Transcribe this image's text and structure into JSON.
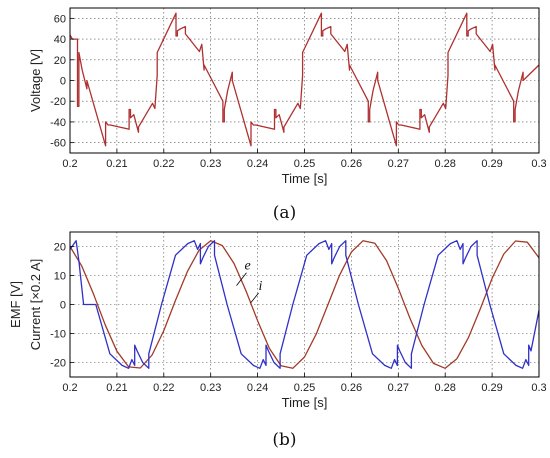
{
  "chart_data": [
    {
      "type": "line",
      "panel_label": "(a)",
      "xlabel": "Time [s]",
      "ylabel": "Voltage [V]",
      "xlim": [
        0.2,
        0.3
      ],
      "ylim": [
        -70,
        70
      ],
      "xticks": [
        0.2,
        0.21,
        0.22,
        0.23,
        0.24,
        0.25,
        0.26,
        0.27,
        0.28,
        0.29,
        0.3
      ],
      "xtick_labels": [
        "0.2",
        "0.21",
        "0.22",
        "0.23",
        "0.24",
        "0.25",
        "0.26",
        "0.27",
        "0.28",
        "0.29",
        "0.3"
      ],
      "yticks": [
        -60,
        -40,
        -20,
        0,
        20,
        40,
        60
      ],
      "ytick_labels": [
        "-60",
        "-40",
        "-20",
        "0",
        "20",
        "40",
        "60"
      ],
      "grid": true,
      "series": [
        {
          "color": "#b03030",
          "x": [
            0.2,
            0.2005,
            0.2016,
            0.2016,
            0.2019,
            0.2019,
            0.2026,
            0.2036,
            0.2036,
            0.2076,
            0.2076,
            0.2081,
            0.2081,
            0.2086,
            0.2086,
            0.2126,
            0.2126,
            0.2129,
            0.2129,
            0.2136,
            0.2146,
            0.2146,
            0.2176,
            0.2176,
            0.2181,
            0.2181,
            0.2186,
            0.2186,
            0.2226,
            0.2226,
            0.2229,
            0.2229,
            0.2236,
            0.2246,
            0.2246,
            0.2276,
            0.2276,
            0.2281,
            0.2281,
            0.2286,
            0.2286,
            0.2326,
            0.2326,
            0.2329,
            0.2329,
            0.2336,
            0.2346,
            0.2346,
            0.2386,
            0.2386,
            0.2391,
            0.2391,
            0.2396,
            0.2396,
            0.2436,
            0.2436,
            0.2439,
            0.2439,
            0.2446,
            0.2456,
            0.2456,
            0.2486,
            0.2486,
            0.2491,
            0.2491,
            0.2496,
            0.2496,
            0.2536,
            0.2536,
            0.2539,
            0.2539,
            0.2546,
            0.2556,
            0.2556,
            0.2586,
            0.2586,
            0.2591,
            0.2591,
            0.2596,
            0.2596,
            0.2636,
            0.2636,
            0.2639,
            0.2639,
            0.2646,
            0.2656,
            0.2656,
            0.2696,
            0.2696,
            0.2701,
            0.2701,
            0.2706,
            0.2706,
            0.2746,
            0.2746,
            0.2749,
            0.2749,
            0.2756,
            0.2766,
            0.2766,
            0.2796,
            0.2796,
            0.2801,
            0.2801,
            0.2806,
            0.2806,
            0.2846,
            0.2846,
            0.2849,
            0.2849,
            0.2856,
            0.2866,
            0.2866,
            0.2896,
            0.2896,
            0.2901,
            0.2901,
            0.2906,
            0.2906,
            0.2946,
            0.2946,
            0.2949,
            0.2949,
            0.2956,
            0.2966,
            0.2966,
            0.3
          ],
          "y": [
            44,
            40,
            40,
            -25,
            -25,
            27,
            10,
            -8,
            0,
            -63,
            -40,
            -43,
            -43,
            -43,
            -43,
            -47,
            -28,
            -28,
            -36,
            -33,
            -50,
            -45,
            -22,
            -22,
            -27,
            -27,
            5,
            27,
            65,
            43,
            43,
            48,
            50,
            52,
            45,
            28,
            28,
            35,
            35,
            10,
            15,
            -20,
            -40,
            -40,
            -28,
            -10,
            8,
            0,
            -63,
            -40,
            -43,
            -43,
            -43,
            -43,
            -47,
            -28,
            -28,
            -36,
            -33,
            -50,
            -45,
            -22,
            -22,
            -27,
            -27,
            5,
            27,
            65,
            43,
            43,
            48,
            50,
            52,
            45,
            28,
            28,
            35,
            35,
            10,
            15,
            -20,
            -40,
            -40,
            -28,
            -10,
            8,
            0,
            -63,
            -40,
            -43,
            -43,
            -43,
            -43,
            -47,
            -28,
            -28,
            -36,
            -33,
            -50,
            -45,
            -22,
            -22,
            -27,
            -27,
            5,
            27,
            65,
            43,
            43,
            48,
            50,
            52,
            45,
            28,
            28,
            35,
            35,
            10,
            15,
            -20,
            -40,
            -40,
            -28,
            -10,
            8,
            0,
            15
          ]
        }
      ]
    },
    {
      "type": "line",
      "panel_label": "(b)",
      "xlabel": "Time [s]",
      "ylabel_lines": [
        "EMF [V]",
        "Current [×0.2 A]"
      ],
      "xlim": [
        0.2,
        0.3
      ],
      "ylim": [
        -25,
        25
      ],
      "xticks": [
        0.2,
        0.21,
        0.22,
        0.23,
        0.24,
        0.25,
        0.26,
        0.27,
        0.28,
        0.29,
        0.3
      ],
      "xtick_labels": [
        "0.2",
        "0.21",
        "0.22",
        "0.23",
        "0.24",
        "0.25",
        "0.26",
        "0.27",
        "0.28",
        "0.29",
        "0.3"
      ],
      "yticks": [
        -20,
        -10,
        0,
        10,
        20
      ],
      "ytick_labels": [
        "-20",
        "-10",
        "0",
        "10",
        "20"
      ],
      "grid": true,
      "annotations": [
        {
          "text": "e",
          "x": 0.2372,
          "y": 12
        },
        {
          "text": "i",
          "x": 0.2402,
          "y": 5
        }
      ],
      "series": [
        {
          "color": "#a03c28",
          "label": "e",
          "x": [
            0.2,
            0.2025,
            0.205,
            0.2075,
            0.21,
            0.2125,
            0.215,
            0.2175,
            0.22,
            0.2225,
            0.225,
            0.2275,
            0.23,
            0.2325,
            0.235,
            0.2375,
            0.24,
            0.2425,
            0.245,
            0.2475,
            0.25,
            0.2525,
            0.255,
            0.2575,
            0.26,
            0.2625,
            0.265,
            0.2675,
            0.27,
            0.2725,
            0.275,
            0.2775,
            0.28,
            0.2825,
            0.285,
            0.2875,
            0.29,
            0.2925,
            0.295,
            0.2975,
            0.3
          ],
          "y": [
            20,
            13.3,
            3.7,
            -7,
            -16.1,
            -21.5,
            -21.9,
            -17.4,
            -9,
            1.4,
            11.3,
            18.7,
            22,
            20.3,
            14.1,
            4.8,
            -5.6,
            -15.1,
            -21.1,
            -22,
            -18.1,
            -10.2,
            0,
            10.2,
            18.1,
            22,
            21.1,
            15.1,
            5.6,
            -4.8,
            -14.1,
            -20.3,
            -22,
            -18.7,
            -11.3,
            -1.4,
            9,
            17.4,
            21.9,
            21.5,
            16.1
          ]
        },
        {
          "color": "#3030c8",
          "label": "i",
          "x": [
            0.2,
            0.2013,
            0.2019,
            0.2029,
            0.2029,
            0.2055,
            0.2055,
            0.2085,
            0.2111,
            0.2125,
            0.2132,
            0.2138,
            0.2138,
            0.2143,
            0.2155,
            0.2168,
            0.2168,
            0.2195,
            0.2195,
            0.2225,
            0.2251,
            0.2265,
            0.2272,
            0.2278,
            0.2278,
            0.2283,
            0.2295,
            0.2308,
            0.2308,
            0.2335,
            0.2335,
            0.2365,
            0.2391,
            0.2405,
            0.2412,
            0.2418,
            0.2418,
            0.2423,
            0.2435,
            0.2448,
            0.2448,
            0.2475,
            0.2475,
            0.2505,
            0.2531,
            0.2545,
            0.2552,
            0.2558,
            0.2558,
            0.2563,
            0.2575,
            0.2588,
            0.2588,
            0.2615,
            0.2615,
            0.2645,
            0.2671,
            0.2685,
            0.2692,
            0.2698,
            0.2698,
            0.2703,
            0.2715,
            0.2728,
            0.2728,
            0.2755,
            0.2755,
            0.2785,
            0.2811,
            0.2825,
            0.2832,
            0.2838,
            0.2838,
            0.2843,
            0.2855,
            0.2868,
            0.2868,
            0.2895,
            0.2895,
            0.2925,
            0.2951,
            0.2965,
            0.2972,
            0.2978,
            0.2978,
            0.2983,
            0.3
          ],
          "y": [
            19,
            22,
            15,
            0,
            0,
            0,
            0,
            -17,
            -21,
            -22,
            -19,
            -21,
            -14,
            -16,
            -20,
            -22,
            -17,
            0,
            0,
            17,
            21,
            22,
            19,
            21,
            14,
            16,
            20,
            22,
            17,
            0,
            0,
            -17,
            -21,
            -22,
            -19,
            -21,
            -14,
            -16,
            -20,
            -22,
            -17,
            0,
            0,
            17,
            21,
            22,
            19,
            21,
            14,
            16,
            20,
            22,
            17,
            0,
            0,
            -17,
            -21,
            -22,
            -19,
            -21,
            -14,
            -16,
            -20,
            -22,
            -17,
            0,
            0,
            17,
            21,
            22,
            19,
            21,
            14,
            16,
            20,
            22,
            17,
            0,
            0,
            -17,
            -21,
            -22,
            -19,
            -21,
            -14,
            -16,
            -2
          ]
        }
      ]
    }
  ]
}
